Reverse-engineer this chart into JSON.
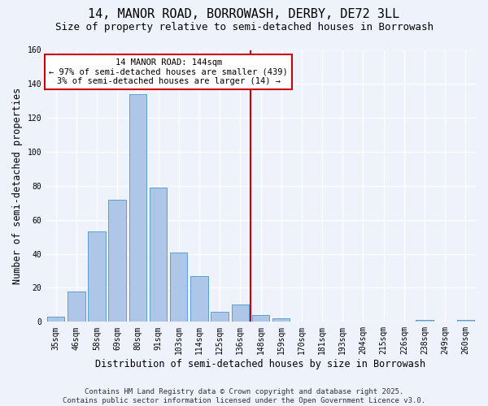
{
  "title1": "14, MANOR ROAD, BORROWASH, DERBY, DE72 3LL",
  "title2": "Size of property relative to semi-detached houses in Borrowash",
  "xlabel": "Distribution of semi-detached houses by size in Borrowash",
  "ylabel": "Number of semi-detached properties",
  "bar_labels": [
    "35sqm",
    "46sqm",
    "58sqm",
    "69sqm",
    "80sqm",
    "91sqm",
    "103sqm",
    "114sqm",
    "125sqm",
    "136sqm",
    "148sqm",
    "159sqm",
    "170sqm",
    "181sqm",
    "193sqm",
    "204sqm",
    "215sqm",
    "226sqm",
    "238sqm",
    "249sqm",
    "260sqm"
  ],
  "bar_values": [
    3,
    18,
    53,
    72,
    134,
    79,
    41,
    27,
    6,
    10,
    4,
    2,
    0,
    0,
    0,
    0,
    0,
    0,
    1,
    0,
    1
  ],
  "bar_color": "#aec6e8",
  "bar_edge_color": "#5a9fd4",
  "annotation_text": "14 MANOR ROAD: 144sqm\n← 97% of semi-detached houses are smaller (439)\n3% of semi-detached houses are larger (14) →",
  "annotation_box_color": "#ffffff",
  "annotation_border_color": "#cc0000",
  "vline_color": "#cc0000",
  "vline_index": 9.5,
  "ylim": [
    0,
    160
  ],
  "yticks": [
    0,
    20,
    40,
    60,
    80,
    100,
    120,
    140,
    160
  ],
  "footer": "Contains HM Land Registry data © Crown copyright and database right 2025.\nContains public sector information licensed under the Open Government Licence v3.0.",
  "background_color": "#eef2fb",
  "grid_color": "#ffffff",
  "title_fontsize": 11,
  "subtitle_fontsize": 9,
  "axis_label_fontsize": 8.5,
  "tick_fontsize": 7,
  "annotation_fontsize": 7.5,
  "footer_fontsize": 6.5
}
